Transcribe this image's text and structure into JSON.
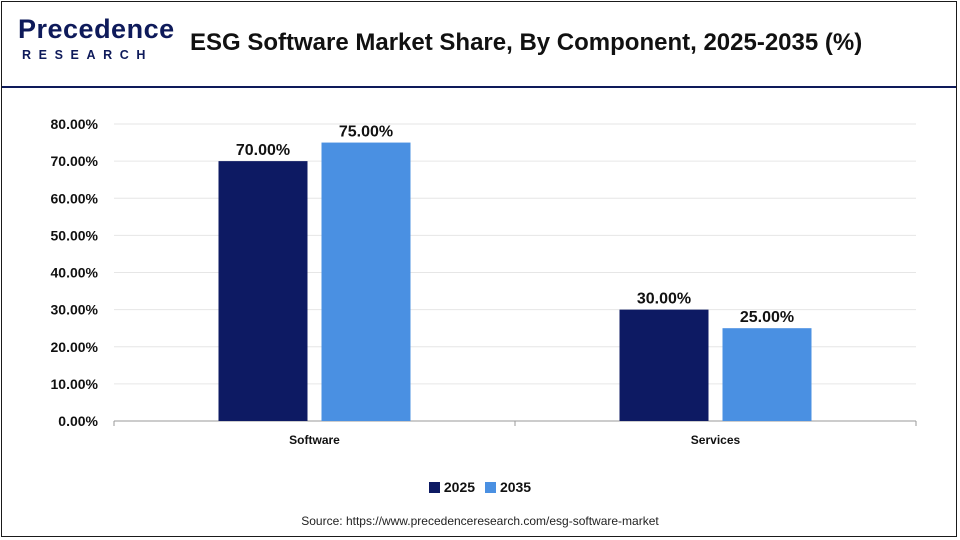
{
  "header": {
    "logo_top": "Precedence",
    "logo_bottom": "RESEARCH",
    "title": "ESG Software Market Share, By Component, 2025-2035 (%)"
  },
  "source": "Source: https://www.precedenceresearch.com/esg-software-market",
  "chart_data": {
    "type": "bar",
    "title": "ESG Software Market Share, By Component, 2025-2035 (%)",
    "xlabel": "",
    "ylabel": "",
    "categories": [
      "Software",
      "Services"
    ],
    "series": [
      {
        "name": "2025",
        "values": [
          70,
          30
        ],
        "labels": [
          "70.00%",
          "30.00%"
        ],
        "color": "#0d1a63"
      },
      {
        "name": "2035",
        "values": [
          75,
          25
        ],
        "labels": [
          "75.00%",
          "25.00%"
        ],
        "color": "#4a90e2"
      }
    ],
    "ylim": [
      0,
      80
    ],
    "yticks": [
      0,
      10,
      20,
      30,
      40,
      50,
      60,
      70,
      80
    ],
    "ytick_labels": [
      "0.00%",
      "10.00%",
      "20.00%",
      "30.00%",
      "40.00%",
      "50.00%",
      "60.00%",
      "70.00%",
      "80.00%"
    ],
    "grid": true,
    "legend_position": "bottom-center"
  }
}
